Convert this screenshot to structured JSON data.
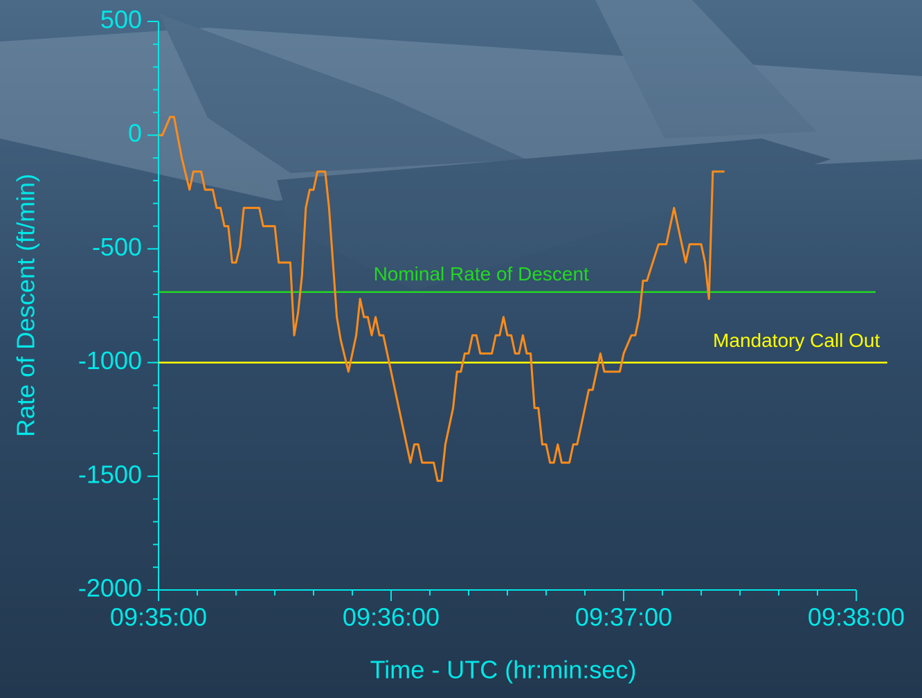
{
  "chart_data": {
    "type": "line",
    "xlabel": "Time - UTC (hr:min:sec)",
    "ylabel": "Rate of Descent (ft/min)",
    "x": [
      "09:35:00",
      "09:35:01",
      "09:35:03",
      "09:35:04",
      "09:35:06",
      "09:35:08",
      "09:35:09",
      "09:35:11",
      "09:35:12",
      "09:35:14",
      "09:35:15",
      "09:35:16",
      "09:35:17",
      "09:35:18",
      "09:35:19",
      "09:35:20",
      "09:35:21",
      "09:35:22",
      "09:35:26",
      "09:35:27",
      "09:35:30",
      "09:35:31",
      "09:35:34",
      "09:35:35",
      "09:35:36",
      "09:35:37",
      "09:35:38",
      "09:35:39",
      "09:35:40",
      "09:35:41",
      "09:35:43",
      "09:35:44",
      "09:35:45",
      "09:35:46",
      "09:35:47",
      "09:35:49",
      "09:35:50",
      "09:35:51",
      "09:35:52",
      "09:35:53",
      "09:35:54",
      "09:35:55",
      "09:35:56",
      "09:35:57",
      "09:35:58",
      "09:36:00",
      "09:36:01",
      "09:36:03",
      "09:36:05",
      "09:36:06",
      "09:36:07",
      "09:36:08",
      "09:36:11",
      "09:36:12",
      "09:36:13",
      "09:36:14",
      "09:36:16",
      "09:36:17",
      "09:36:18",
      "09:36:19",
      "09:36:20",
      "09:36:21",
      "09:36:22",
      "09:36:23",
      "09:36:26",
      "09:36:27",
      "09:36:28",
      "09:36:29",
      "09:36:30",
      "09:36:31",
      "09:36:32",
      "09:36:33",
      "09:36:34",
      "09:36:35",
      "09:36:36",
      "09:36:37",
      "09:36:38",
      "09:36:39",
      "09:36:40",
      "09:36:41",
      "09:36:42",
      "09:36:43",
      "09:36:44",
      "09:36:46",
      "09:36:47",
      "09:36:48",
      "09:36:49",
      "09:36:51",
      "09:36:52",
      "09:36:54",
      "09:36:55",
      "09:36:59",
      "09:37:00",
      "09:37:02",
      "09:37:03",
      "09:37:04",
      "09:37:05",
      "09:37:06",
      "09:37:09",
      "09:37:11",
      "09:37:13",
      "09:37:14",
      "09:37:16",
      "09:37:17",
      "09:37:20",
      "09:37:21",
      "09:37:22",
      "09:37:23",
      "09:37:26"
    ],
    "series": [
      {
        "color": "#ff8c1a",
        "values": [
          0,
          0,
          80,
          80,
          -100,
          -240,
          -160,
          -160,
          -240,
          -240,
          -320,
          -320,
          -400,
          -400,
          -560,
          -560,
          -490,
          -320,
          -320,
          -400,
          -400,
          -560,
          -560,
          -880,
          -780,
          -620,
          -320,
          -240,
          -240,
          -160,
          -160,
          -320,
          -560,
          -800,
          -900,
          -1040,
          -960,
          -880,
          -720,
          -800,
          -800,
          -880,
          -800,
          -880,
          -880,
          -1040,
          -1120,
          -1280,
          -1440,
          -1360,
          -1360,
          -1440,
          -1440,
          -1520,
          -1520,
          -1360,
          -1200,
          -1040,
          -1040,
          -960,
          -960,
          -880,
          -880,
          -960,
          -960,
          -880,
          -880,
          -800,
          -880,
          -880,
          -960,
          -960,
          -880,
          -960,
          -960,
          -1200,
          -1200,
          -1360,
          -1360,
          -1440,
          -1440,
          -1360,
          -1440,
          -1440,
          -1360,
          -1360,
          -1280,
          -1120,
          -1120,
          -960,
          -1040,
          -1040,
          -960,
          -880,
          -880,
          -800,
          -640,
          -640,
          -480,
          -480,
          -320,
          -400,
          -560,
          -480,
          -480,
          -560,
          -720,
          -160,
          -160
        ]
      }
    ],
    "xlim": [
      "09:35:00",
      "09:38:00"
    ],
    "xticks": [
      "09:35:00",
      "09:36:00",
      "09:37:00",
      "09:38:00"
    ],
    "ylim": [
      -2000,
      500
    ],
    "yticks": [
      -2000,
      -1500,
      -1000,
      -500,
      0,
      500
    ],
    "minor_ticks": {
      "x_step_seconds": 10,
      "y_step": 100
    },
    "axis_color": "#00e8e8",
    "reference_lines": [
      {
        "label": "Nominal Rate of Descent",
        "value": -690,
        "color": "#22d822",
        "x_end": "09:38:05"
      },
      {
        "label": "Mandatory Call Out",
        "value": -1000,
        "color": "#ffff00",
        "x_end": "09:38:08"
      }
    ]
  }
}
